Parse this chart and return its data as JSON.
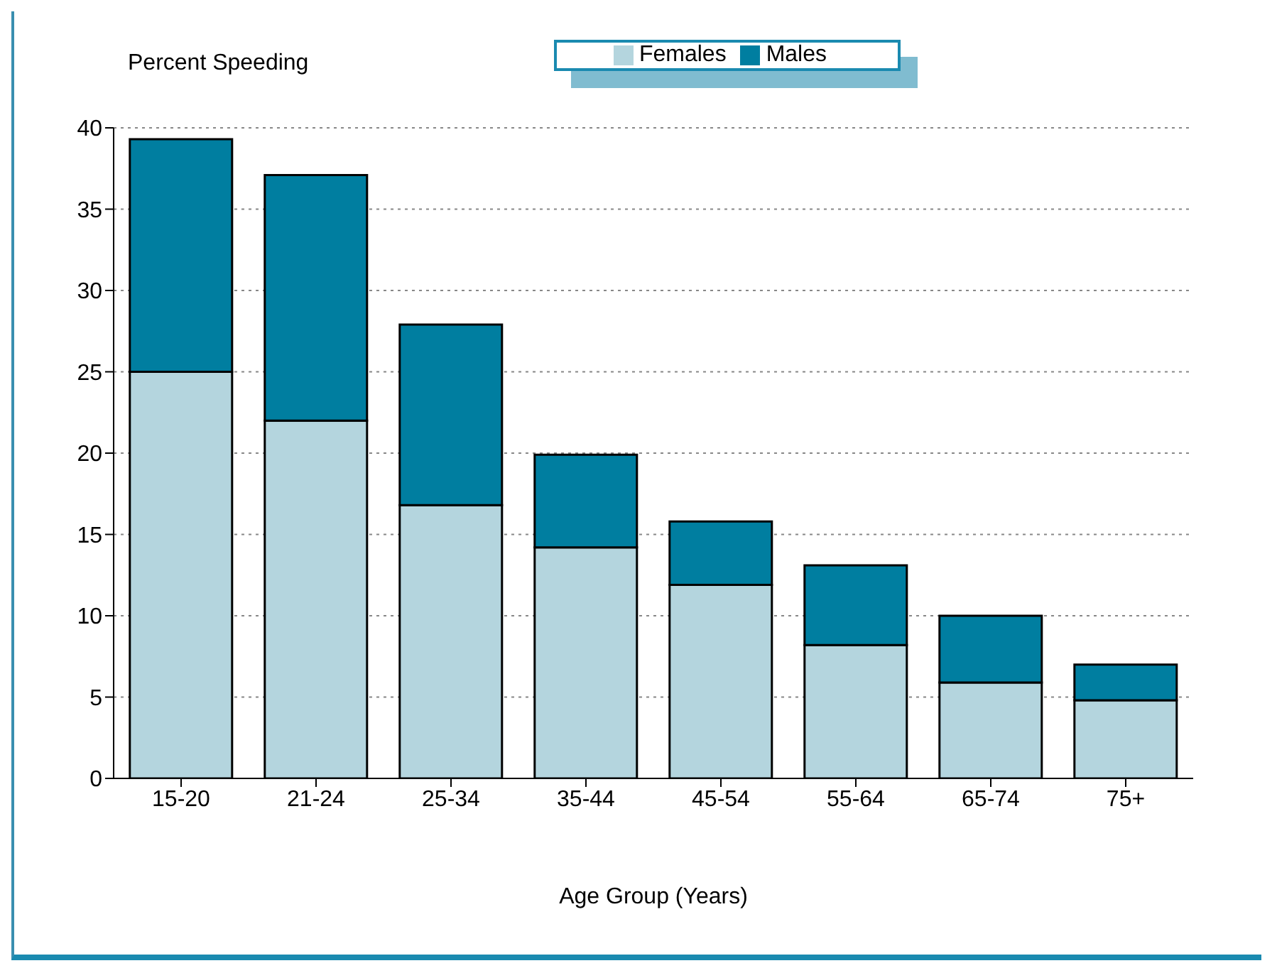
{
  "chart_data": {
    "type": "bar",
    "stacked": true,
    "ylabel": "Percent Speeding",
    "xlabel": "Age Group (Years)",
    "categories": [
      "15-20",
      "21-24",
      "25-34",
      "35-44",
      "45-54",
      "55-64",
      "65-74",
      "75+"
    ],
    "series": [
      {
        "name": "Females",
        "color": "#b4d5de",
        "values": [
          25,
          22,
          16.8,
          14.2,
          11.9,
          8.2,
          5.9,
          4.8
        ]
      },
      {
        "name": "Males",
        "color": "#007ea0",
        "values": [
          14.3,
          15.1,
          11.1,
          5.7,
          3.9,
          4.9,
          4.1,
          2.2
        ]
      }
    ],
    "ylim": [
      0,
      40
    ],
    "yticks": [
      0,
      5,
      10,
      15,
      20,
      25,
      30,
      35,
      40
    ],
    "grid": "y",
    "legend": "top"
  }
}
